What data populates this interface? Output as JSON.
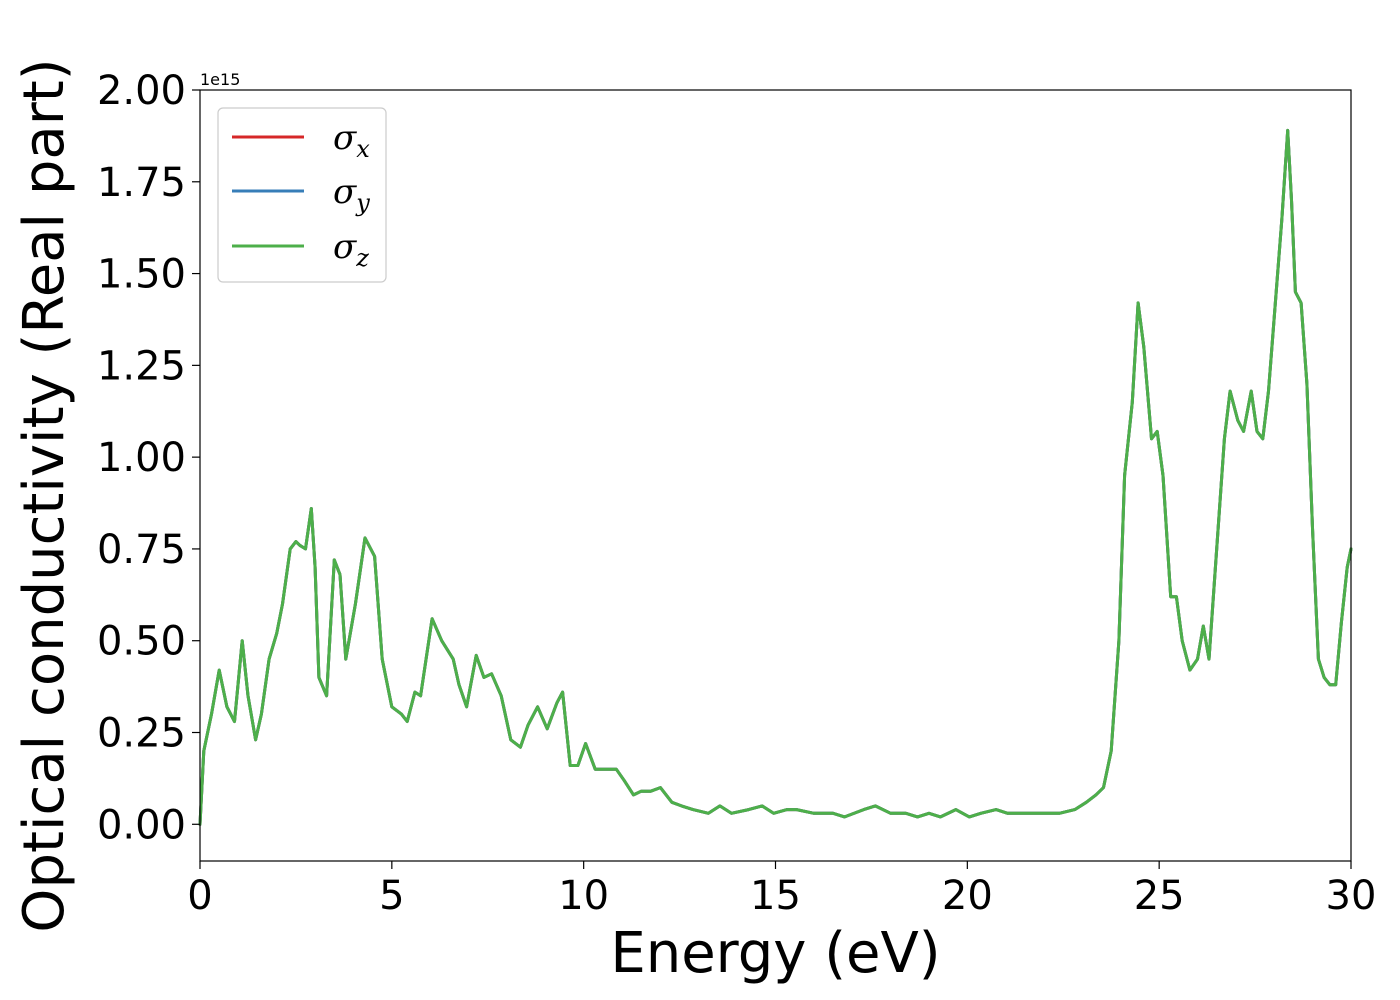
{
  "chart_data": {
    "type": "line",
    "xlabel": "Energy (eV)",
    "ylabel": "Optical conductivity (Real part)",
    "y_offset_label": "1e15",
    "xlim": [
      0,
      30
    ],
    "ylim": [
      -0.1,
      2.0
    ],
    "x_ticks": [
      0,
      5,
      10,
      15,
      20,
      25,
      30
    ],
    "x_tick_labels": [
      "0",
      "5",
      "10",
      "15",
      "20",
      "25",
      "30"
    ],
    "y_ticks": [
      0.0,
      0.25,
      0.5,
      0.75,
      1.0,
      1.25,
      1.5,
      1.75,
      2.0
    ],
    "y_tick_labels": [
      "0.00",
      "0.25",
      "0.50",
      "0.75",
      "1.00",
      "1.25",
      "1.50",
      "1.75",
      "2.00"
    ],
    "grid": false,
    "legend_position": "top-left",
    "series": [
      {
        "name": "σx",
        "symbol": "σ",
        "subscript": "x",
        "color": "#d62728"
      },
      {
        "name": "σy",
        "symbol": "σ",
        "subscript": "y",
        "color": "#377eb8"
      },
      {
        "name": "σz",
        "symbol": "σ",
        "subscript": "z",
        "color": "#4daf4a"
      }
    ],
    "shared_values": {
      "x": [
        0,
        0.1,
        0.3,
        0.5,
        0.7,
        0.9,
        1.1,
        1.25,
        1.45,
        1.6,
        1.8,
        2.0,
        2.15,
        2.35,
        2.5,
        2.6,
        2.75,
        2.9,
        3.0,
        3.1,
        3.3,
        3.5,
        3.65,
        3.8,
        4.05,
        4.3,
        4.55,
        4.75,
        5.0,
        5.25,
        5.4,
        5.6,
        5.75,
        6.05,
        6.3,
        6.6,
        6.75,
        6.95,
        7.2,
        7.4,
        7.6,
        7.85,
        8.1,
        8.35,
        8.55,
        8.8,
        9.05,
        9.3,
        9.45,
        9.65,
        9.85,
        10.05,
        10.3,
        10.55,
        10.85,
        11.05,
        11.3,
        11.5,
        11.75,
        12.0,
        12.3,
        12.55,
        12.85,
        13.25,
        13.55,
        13.85,
        14.3,
        14.65,
        14.95,
        15.3,
        15.55,
        16.0,
        16.5,
        16.8,
        17.3,
        17.6,
        18.0,
        18.4,
        18.7,
        19.0,
        19.3,
        19.7,
        20.05,
        20.35,
        20.75,
        21.05,
        21.5,
        22.0,
        22.4,
        22.8,
        23.1,
        23.35,
        23.55,
        23.75,
        23.95,
        24.1,
        24.3,
        24.45,
        24.6,
        24.8,
        24.95,
        25.1,
        25.3,
        25.45,
        25.6,
        25.8,
        26.0,
        26.15,
        26.3,
        26.5,
        26.7,
        26.85,
        27.05,
        27.2,
        27.4,
        27.55,
        27.7,
        27.85,
        28.05,
        28.2,
        28.35,
        28.45,
        28.55,
        28.7,
        28.85,
        29.0,
        29.15,
        29.3,
        29.45,
        29.6,
        29.75,
        29.9,
        30.0
      ],
      "y": [
        0.0,
        0.2,
        0.3,
        0.42,
        0.32,
        0.28,
        0.5,
        0.35,
        0.23,
        0.3,
        0.45,
        0.52,
        0.6,
        0.75,
        0.77,
        0.76,
        0.75,
        0.86,
        0.7,
        0.4,
        0.35,
        0.72,
        0.68,
        0.45,
        0.6,
        0.78,
        0.73,
        0.45,
        0.32,
        0.3,
        0.28,
        0.36,
        0.35,
        0.56,
        0.5,
        0.45,
        0.38,
        0.32,
        0.46,
        0.4,
        0.41,
        0.35,
        0.23,
        0.21,
        0.27,
        0.32,
        0.26,
        0.33,
        0.36,
        0.16,
        0.16,
        0.22,
        0.15,
        0.15,
        0.15,
        0.12,
        0.08,
        0.09,
        0.09,
        0.1,
        0.06,
        0.05,
        0.04,
        0.03,
        0.05,
        0.03,
        0.04,
        0.05,
        0.03,
        0.04,
        0.04,
        0.03,
        0.03,
        0.02,
        0.04,
        0.05,
        0.03,
        0.03,
        0.02,
        0.03,
        0.02,
        0.04,
        0.02,
        0.03,
        0.04,
        0.03,
        0.03,
        0.03,
        0.03,
        0.04,
        0.06,
        0.08,
        0.1,
        0.2,
        0.5,
        0.95,
        1.15,
        1.42,
        1.3,
        1.05,
        1.07,
        0.95,
        0.62,
        0.62,
        0.5,
        0.42,
        0.45,
        0.54,
        0.45,
        0.75,
        1.05,
        1.18,
        1.1,
        1.07,
        1.18,
        1.07,
        1.05,
        1.18,
        1.45,
        1.65,
        1.89,
        1.7,
        1.45,
        1.42,
        1.2,
        0.8,
        0.45,
        0.4,
        0.38,
        0.38,
        0.55,
        0.7,
        0.75
      ]
    }
  }
}
